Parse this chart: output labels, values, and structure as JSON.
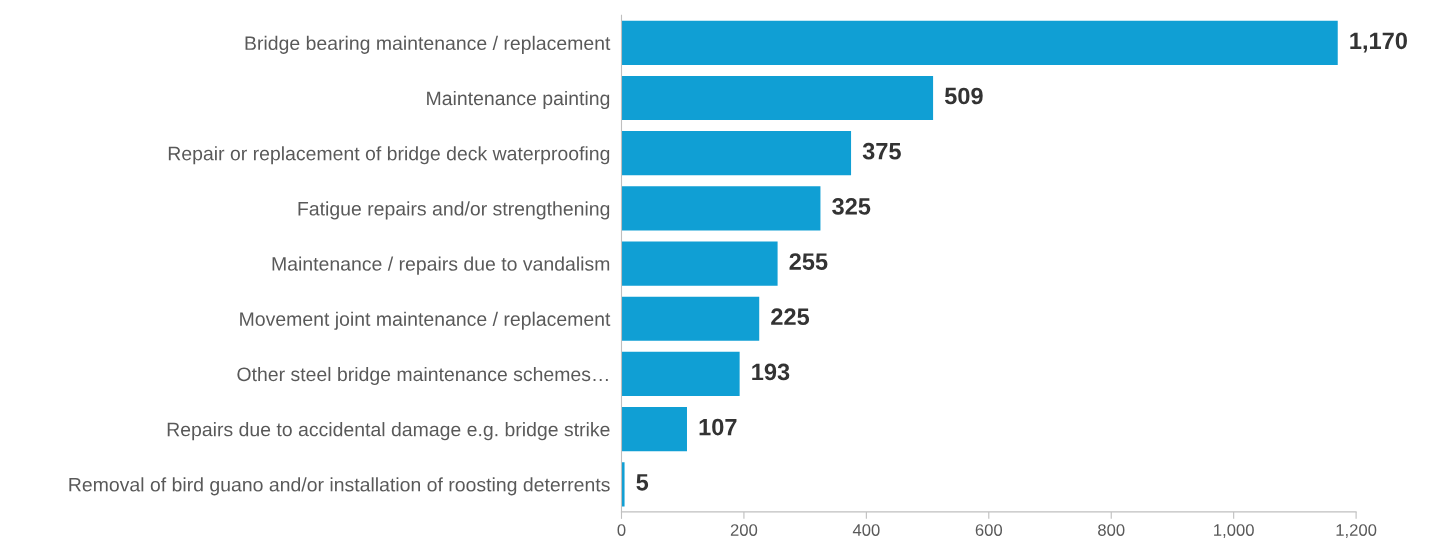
{
  "chart_data": {
    "type": "bar",
    "orientation": "horizontal",
    "categories": [
      "Bridge bearing maintenance / replacement",
      "Maintenance painting",
      "Repair or replacement of bridge deck waterproofing",
      "Fatigue repairs and/or strengthening",
      "Maintenance / repairs due to vandalism",
      "Movement joint maintenance / replacement",
      "Other steel bridge maintenance schemes…",
      "Repairs due to accidental damage e.g. bridge strike",
      "Removal of bird guano and/or installation of roosting deterrents"
    ],
    "values": [
      1170,
      509,
      375,
      325,
      255,
      225,
      193,
      107,
      5
    ],
    "value_labels": [
      "1,170",
      "509",
      "375",
      "325",
      "255",
      "225",
      "193",
      "107",
      "5"
    ],
    "color": "#109fd4",
    "xlim": [
      0,
      1200
    ],
    "xticks": [
      0,
      200,
      400,
      600,
      800,
      {
        "value": 1000,
        "label": "1,000"
      },
      {
        "value": 1200,
        "label": "1,200"
      }
    ],
    "grid": false
  }
}
